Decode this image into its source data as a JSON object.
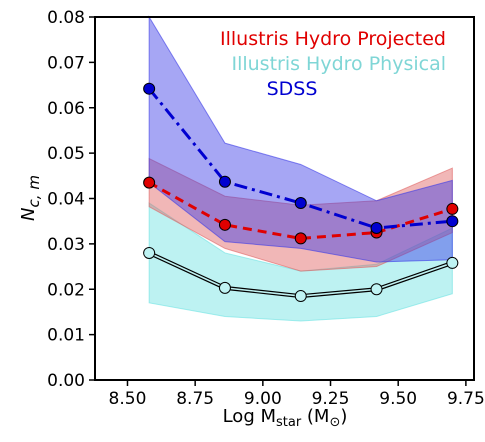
{
  "chart_data": {
    "type": "line",
    "xlabel": {
      "base": "Log M",
      "sub": "star",
      "tail": " (M",
      "sun": "⊙",
      "close": ")"
    },
    "ylabel": {
      "base": "N",
      "sub": "c, m"
    },
    "xlim": [
      8.38,
      9.78
    ],
    "ylim": [
      0.0,
      0.08
    ],
    "xticks": [
      "8.50",
      "8.75",
      "9.00",
      "9.25",
      "9.50",
      "9.75"
    ],
    "xtick_values": [
      8.5,
      8.75,
      9.0,
      9.25,
      9.5,
      9.75
    ],
    "yticks": [
      "0.00",
      "0.01",
      "0.02",
      "0.03",
      "0.04",
      "0.05",
      "0.06",
      "0.07",
      "0.08"
    ],
    "ytick_values": [
      0.0,
      0.01,
      0.02,
      0.03,
      0.04,
      0.05,
      0.06,
      0.07,
      0.08
    ],
    "grid": false,
    "legend_placement": "top-right",
    "x": [
      8.58,
      8.86,
      9.14,
      9.42,
      9.7
    ],
    "series": [
      {
        "name": "Illustris Hydro Projected",
        "color": "#e00000",
        "band_color": "#e06060",
        "line_style": "dashed",
        "values": [
          0.0435,
          0.0342,
          0.0312,
          0.0325,
          0.0377
        ],
        "band_low": [
          0.0382,
          0.029,
          0.024,
          0.025,
          0.0325
        ],
        "band_high": [
          0.0488,
          0.0405,
          0.0385,
          0.0395,
          0.0467
        ]
      },
      {
        "name": "Illustris Hydro Physical",
        "color": "#7fd6d6",
        "band_color": "#6de3e3",
        "line_style": "double",
        "values": [
          0.028,
          0.0203,
          0.0185,
          0.02,
          0.0258
        ],
        "band_low": [
          0.017,
          0.014,
          0.013,
          0.014,
          0.019
        ],
        "band_high": [
          0.039,
          0.028,
          0.024,
          0.0255,
          0.0335
        ]
      },
      {
        "name": "SDSS",
        "color": "#0000d0",
        "band_color": "#3a3ae6",
        "line_style": "dashdot",
        "values": [
          0.0642,
          0.0437,
          0.039,
          0.0335,
          0.035
        ],
        "band_low": [
          0.0435,
          0.0305,
          0.029,
          0.026,
          0.0265
        ],
        "band_high": [
          0.08,
          0.0522,
          0.0475,
          0.0395,
          0.044
        ]
      }
    ]
  }
}
